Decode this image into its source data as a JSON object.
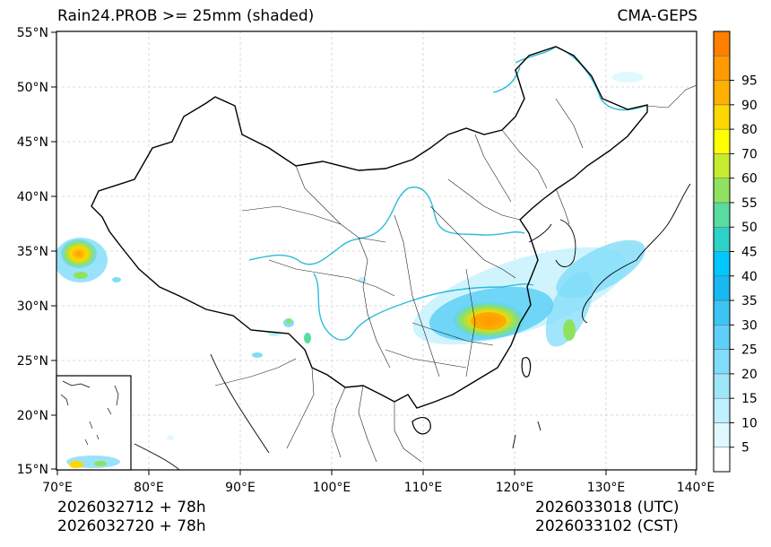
{
  "header": {
    "title": "Rain24.PROB >= 25mm (shaded)",
    "model": "CMA-GEPS"
  },
  "footer": {
    "init_utc_line": "2026032712 + 78h",
    "init_cst_line": "2026032720 + 78h",
    "valid_utc_line": "2026033018 (UTC)",
    "valid_cst_line": "2026033102 (CST)"
  },
  "map": {
    "extent_lon": [
      70,
      140
    ],
    "extent_lat": [
      15,
      55
    ],
    "lat_ticks": [
      "55°N",
      "50°N",
      "45°N",
      "40°N",
      "35°N",
      "30°N",
      "25°N",
      "20°N",
      "15°N"
    ],
    "lon_ticks": [
      "70°E",
      "80°E",
      "90°E",
      "100°E",
      "110°E",
      "120°E",
      "130°E",
      "140°E"
    ]
  },
  "colorbar": {
    "labels": [
      "5",
      "10",
      "15",
      "20",
      "25",
      "30",
      "35",
      "40",
      "45",
      "50",
      "55",
      "60",
      "70",
      "80",
      "90",
      "95"
    ],
    "colors": [
      "#ffffff",
      "#e0f9ff",
      "#bff0fd",
      "#9fe6fb",
      "#80dcf9",
      "#5ed0f7",
      "#3cc5f4",
      "#18b9f2",
      "#00c8ff",
      "#2cd2c8",
      "#58dca0",
      "#8fe25f",
      "#c7ec2f",
      "#ffff00",
      "#ffd700",
      "#ffb000",
      "#ff9a00",
      "#ff7f00"
    ]
  }
}
